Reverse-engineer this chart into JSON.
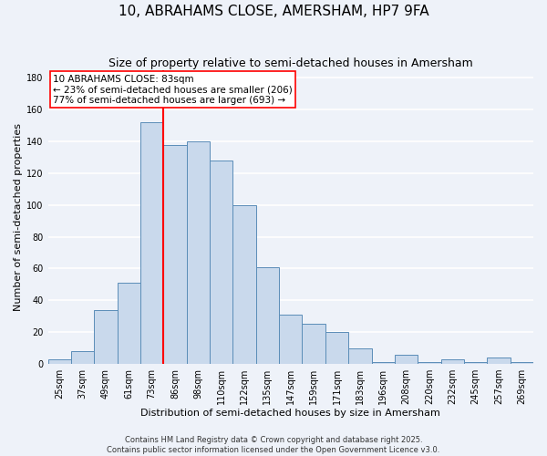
{
  "title": "10, ABRAHAMS CLOSE, AMERSHAM, HP7 9FA",
  "subtitle": "Size of property relative to semi-detached houses in Amersham",
  "xlabel": "Distribution of semi-detached houses by size in Amersham",
  "ylabel": "Number of semi-detached properties",
  "bar_labels": [
    "25sqm",
    "37sqm",
    "49sqm",
    "61sqm",
    "73sqm",
    "86sqm",
    "98sqm",
    "110sqm",
    "122sqm",
    "135sqm",
    "147sqm",
    "159sqm",
    "171sqm",
    "183sqm",
    "196sqm",
    "208sqm",
    "220sqm",
    "232sqm",
    "245sqm",
    "257sqm",
    "269sqm"
  ],
  "bar_values": [
    3,
    8,
    34,
    51,
    152,
    138,
    140,
    128,
    100,
    61,
    31,
    25,
    20,
    10,
    1,
    6,
    1,
    3,
    1,
    4,
    1
  ],
  "bar_color": "#c9d9ec",
  "bar_edge_color": "#5b8db8",
  "vline_x_index": 4.5,
  "vline_color": "red",
  "annotation_title": "10 ABRAHAMS CLOSE: 83sqm",
  "annotation_line1": "← 23% of semi-detached houses are smaller (206)",
  "annotation_line2": "77% of semi-detached houses are larger (693) →",
  "ylim": [
    0,
    185
  ],
  "yticks": [
    0,
    20,
    40,
    60,
    80,
    100,
    120,
    140,
    160,
    180
  ],
  "footer1": "Contains HM Land Registry data © Crown copyright and database right 2025.",
  "footer2": "Contains public sector information licensed under the Open Government Licence v3.0.",
  "bg_color": "#eef2f9",
  "grid_color": "#ffffff",
  "title_fontsize": 11,
  "subtitle_fontsize": 9,
  "axis_label_fontsize": 8,
  "tick_fontsize": 7,
  "annotation_fontsize": 7.5,
  "footer_fontsize": 6
}
